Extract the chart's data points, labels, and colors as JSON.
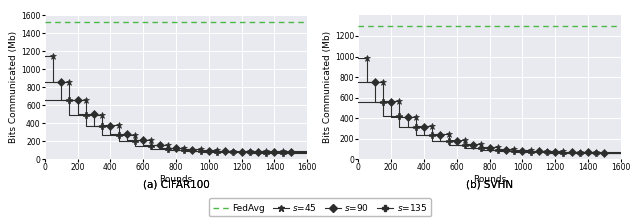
{
  "cifar100": {
    "fedavg_y": 1530,
    "ylim": [
      0,
      1600
    ],
    "yticks": [
      0,
      200,
      400,
      600,
      800,
      1000,
      1200,
      1400,
      1600
    ],
    "xlim": [
      0,
      1600
    ],
    "xticks": [
      0,
      200,
      400,
      600,
      800,
      1000,
      1200,
      1400,
      1600
    ],
    "s45_steps": [
      [
        0,
        50,
        50,
        150,
        150,
        250,
        250,
        350,
        350,
        450,
        450,
        550,
        550,
        650,
        650,
        750,
        750,
        850,
        850,
        950,
        950,
        1050,
        1050,
        1150,
        1150,
        1250,
        1250,
        1350,
        1350,
        1450,
        1450,
        1600
      ],
      [
        1150,
        1150,
        860,
        860,
        660,
        660,
        490,
        490,
        380,
        380,
        270,
        270,
        210,
        210,
        160,
        160,
        125,
        125,
        110,
        110,
        100,
        100,
        95,
        95,
        90,
        90,
        88,
        88,
        85,
        85,
        85,
        85
      ]
    ],
    "s90_steps": [
      [
        0,
        100,
        100,
        200,
        200,
        300,
        300,
        400,
        400,
        500,
        500,
        600,
        600,
        700,
        700,
        800,
        800,
        900,
        900,
        1000,
        1000,
        1100,
        1100,
        1200,
        1200,
        1300,
        1300,
        1400,
        1400,
        1500,
        1500,
        1600
      ],
      [
        860,
        860,
        660,
        660,
        500,
        500,
        370,
        370,
        280,
        280,
        210,
        210,
        155,
        155,
        125,
        125,
        105,
        105,
        95,
        95,
        88,
        88,
        83,
        83,
        80,
        80,
        78,
        78,
        76,
        76,
        76,
        76
      ]
    ],
    "s135_steps": [
      [
        0,
        150,
        150,
        250,
        250,
        350,
        350,
        450,
        450,
        550,
        550,
        650,
        650,
        750,
        750,
        850,
        850,
        950,
        950,
        1050,
        1050,
        1150,
        1150,
        1250,
        1250,
        1350,
        1350,
        1450,
        1450,
        1600
      ],
      [
        660,
        660,
        490,
        490,
        370,
        370,
        265,
        265,
        200,
        200,
        150,
        150,
        118,
        118,
        100,
        100,
        90,
        90,
        82,
        82,
        78,
        78,
        75,
        75,
        72,
        72,
        70,
        70,
        70,
        70
      ]
    ],
    "s45_marks_x": [
      50,
      150,
      250,
      350,
      450,
      550,
      650,
      750,
      850,
      950,
      1050,
      1150,
      1250,
      1350,
      1450
    ],
    "s45_marks_y": [
      1150,
      860,
      660,
      490,
      380,
      270,
      210,
      160,
      125,
      110,
      100,
      95,
      90,
      88,
      85
    ],
    "s90_marks_x": [
      100,
      200,
      300,
      400,
      500,
      600,
      700,
      800,
      900,
      1000,
      1100,
      1200,
      1300,
      1400,
      1500
    ],
    "s90_marks_y": [
      860,
      660,
      500,
      370,
      280,
      210,
      155,
      125,
      105,
      95,
      88,
      83,
      80,
      78,
      76
    ],
    "s135_marks_x": [
      150,
      250,
      350,
      450,
      550,
      650,
      750,
      850,
      950,
      1050,
      1150,
      1250,
      1350,
      1450
    ],
    "s135_marks_y": [
      660,
      490,
      370,
      265,
      200,
      150,
      118,
      100,
      90,
      82,
      78,
      75,
      72,
      70
    ],
    "title": "(a) CIFAR100"
  },
  "svhn": {
    "fedavg_y": 1295,
    "ylim": [
      0,
      1400
    ],
    "yticks": [
      0,
      200,
      400,
      600,
      800,
      1000,
      1200
    ],
    "xlim": [
      0,
      1600
    ],
    "xticks": [
      0,
      200,
      400,
      600,
      800,
      1000,
      1200,
      1400,
      1600
    ],
    "s45_steps": [
      [
        0,
        50,
        50,
        150,
        150,
        250,
        250,
        350,
        350,
        450,
        450,
        550,
        550,
        650,
        650,
        750,
        750,
        850,
        850,
        950,
        950,
        1050,
        1050,
        1150,
        1150,
        1250,
        1250,
        1350,
        1350,
        1450,
        1450,
        1600
      ],
      [
        990,
        990,
        750,
        750,
        570,
        570,
        410,
        410,
        320,
        320,
        240,
        240,
        185,
        185,
        145,
        145,
        115,
        115,
        98,
        98,
        88,
        88,
        82,
        82,
        78,
        78,
        74,
        74,
        72,
        72,
        72,
        72
      ]
    ],
    "s90_steps": [
      [
        0,
        100,
        100,
        200,
        200,
        300,
        300,
        400,
        400,
        500,
        500,
        600,
        600,
        700,
        700,
        800,
        800,
        900,
        900,
        1000,
        1000,
        1100,
        1100,
        1200,
        1200,
        1300,
        1300,
        1400,
        1400,
        1500,
        1500,
        1600
      ],
      [
        750,
        750,
        560,
        560,
        415,
        415,
        310,
        310,
        235,
        235,
        180,
        180,
        135,
        135,
        108,
        108,
        92,
        92,
        83,
        83,
        76,
        76,
        72,
        72,
        68,
        68,
        65,
        65,
        63,
        63,
        63,
        63
      ]
    ],
    "s135_steps": [
      [
        0,
        150,
        150,
        250,
        250,
        350,
        350,
        450,
        450,
        550,
        550,
        650,
        650,
        750,
        750,
        850,
        850,
        950,
        950,
        1050,
        1050,
        1150,
        1150,
        1250,
        1250,
        1350,
        1350,
        1450,
        1450,
        1600
      ],
      [
        560,
        560,
        420,
        420,
        315,
        315,
        235,
        235,
        180,
        180,
        138,
        138,
        108,
        108,
        90,
        90,
        78,
        78,
        70,
        70,
        65,
        65,
        62,
        62,
        60,
        60,
        58,
        58,
        58,
        58
      ]
    ],
    "s45_marks_x": [
      50,
      150,
      250,
      350,
      450,
      550,
      650,
      750,
      850,
      950,
      1050,
      1150,
      1250,
      1350,
      1450
    ],
    "s45_marks_y": [
      990,
      750,
      570,
      410,
      320,
      240,
      185,
      145,
      115,
      98,
      88,
      82,
      78,
      74,
      72
    ],
    "s90_marks_x": [
      100,
      200,
      300,
      400,
      500,
      600,
      700,
      800,
      900,
      1000,
      1100,
      1200,
      1300,
      1400,
      1500
    ],
    "s90_marks_y": [
      750,
      560,
      415,
      310,
      235,
      180,
      135,
      108,
      92,
      83,
      76,
      72,
      68,
      65,
      63
    ],
    "s135_marks_x": [
      150,
      250,
      350,
      450,
      550,
      650,
      750,
      850,
      950,
      1050,
      1150,
      1250,
      1350,
      1450
    ],
    "s135_marks_y": [
      560,
      420,
      315,
      235,
      180,
      138,
      108,
      90,
      78,
      70,
      65,
      62,
      60,
      58
    ],
    "title": "(b) SVHN"
  },
  "line_color": "#2d2d2d",
  "fedavg_color": "#4db848",
  "bg_color": "#e8eaef",
  "grid_color": "#ffffff",
  "ylabel": "Bits Communicated (Mb)",
  "xlabel": "Rounds"
}
